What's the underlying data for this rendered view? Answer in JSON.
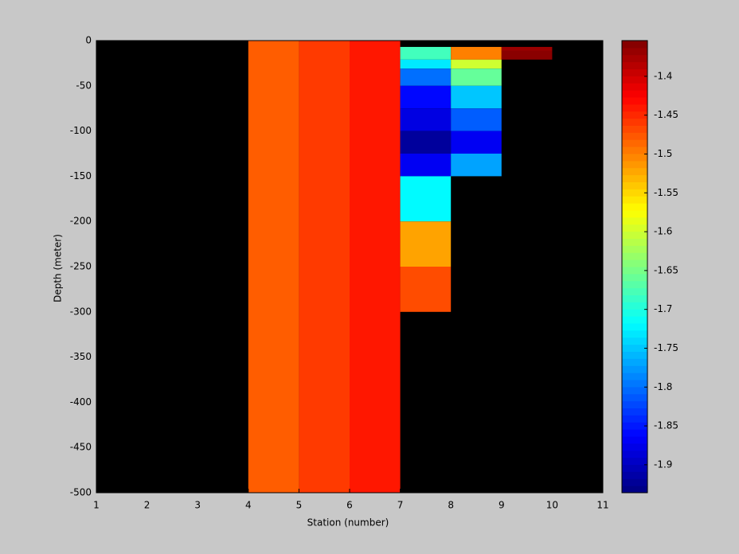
{
  "chart_data": {
    "type": "heatmap",
    "xlabel": "Station (number)",
    "ylabel": "Depth (meter)",
    "xlim": [
      1,
      11
    ],
    "xticks": [
      1,
      2,
      3,
      4,
      5,
      6,
      7,
      8,
      9,
      10,
      11
    ],
    "ylim": [
      -500,
      0
    ],
    "yticks": [
      0,
      -50,
      -100,
      -150,
      -200,
      -250,
      -300,
      -350,
      -400,
      -450,
      -500
    ],
    "clim": [
      -1.936,
      -1.354
    ],
    "cticks": [
      -1.4,
      -1.45,
      -1.5,
      -1.55,
      -1.6,
      -1.65,
      -1.7,
      -1.75,
      -1.8,
      -1.85,
      -1.9
    ],
    "colormap": "jet",
    "background": "#000000",
    "cells": [
      {
        "x": [
          4,
          5
        ],
        "y": [
          -500,
          0
        ],
        "value": -1.48
      },
      {
        "x": [
          5,
          6
        ],
        "y": [
          -500,
          0
        ],
        "value": -1.46
      },
      {
        "x": [
          6,
          7
        ],
        "y": [
          -500,
          0
        ],
        "value": -1.44
      },
      {
        "x": [
          7,
          8
        ],
        "y": [
          -21,
          -7
        ],
        "value": -1.68
      },
      {
        "x": [
          7,
          8
        ],
        "y": [
          -31,
          -21
        ],
        "value": -1.73
      },
      {
        "x": [
          7,
          8
        ],
        "y": [
          -50,
          -31
        ],
        "value": -1.8
      },
      {
        "x": [
          7,
          8
        ],
        "y": [
          -75,
          -50
        ],
        "value": -1.86
      },
      {
        "x": [
          7,
          8
        ],
        "y": [
          -100,
          -75
        ],
        "value": -1.88
      },
      {
        "x": [
          7,
          8
        ],
        "y": [
          -125,
          -100
        ],
        "value": -1.92
      },
      {
        "x": [
          7,
          8
        ],
        "y": [
          -150,
          -125
        ],
        "value": -1.87
      },
      {
        "x": [
          7,
          8
        ],
        "y": [
          -200,
          -150
        ],
        "value": -1.72
      },
      {
        "x": [
          7,
          8
        ],
        "y": [
          -250,
          -200
        ],
        "value": -1.52
      },
      {
        "x": [
          7,
          8
        ],
        "y": [
          -300,
          -250
        ],
        "value": -1.47
      },
      {
        "x": [
          8,
          9
        ],
        "y": [
          -21,
          -7
        ],
        "value": -1.5
      },
      {
        "x": [
          8,
          9
        ],
        "y": [
          -31,
          -21
        ],
        "value": -1.6
      },
      {
        "x": [
          8,
          9
        ],
        "y": [
          -50,
          -31
        ],
        "value": -1.66
      },
      {
        "x": [
          8,
          9
        ],
        "y": [
          -75,
          -50
        ],
        "value": -1.75
      },
      {
        "x": [
          8,
          9
        ],
        "y": [
          -100,
          -75
        ],
        "value": -1.81
      },
      {
        "x": [
          8,
          9
        ],
        "y": [
          -125,
          -100
        ],
        "value": -1.87
      },
      {
        "x": [
          8,
          9
        ],
        "y": [
          -150,
          -125
        ],
        "value": -1.77
      },
      {
        "x": [
          9,
          10
        ],
        "y": [
          -11,
          -7
        ],
        "value": -1.37
      },
      {
        "x": [
          9,
          10
        ],
        "y": [
          -21,
          -11
        ],
        "value": -1.36
      }
    ]
  }
}
